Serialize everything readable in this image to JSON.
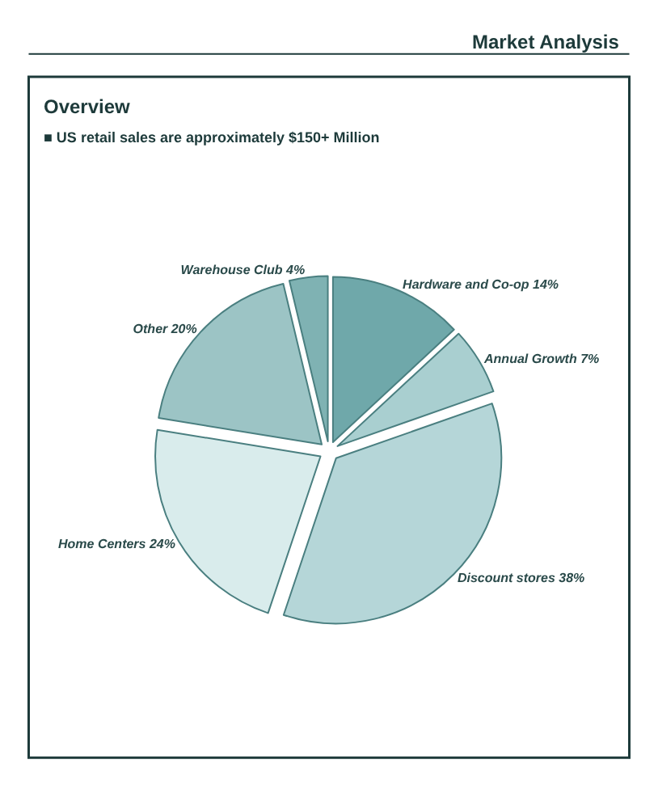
{
  "chart_data": {
    "type": "pie",
    "title": "Market Analysis",
    "subtitle": "Overview",
    "annotations": [
      "■ US retail sales are approximately $150+ Million"
    ],
    "categories": [
      "Hardware and Co-op",
      "Annual Growth",
      "Discount stores",
      "Home Centers",
      "Other",
      "Warehouse Club"
    ],
    "values": [
      14,
      7,
      38,
      24,
      20,
      4
    ],
    "value_labels": [
      "14%",
      "7%",
      "38%",
      "24%",
      "20%",
      "4%"
    ],
    "colors": [
      "#6fa8aa",
      "#a9cfd0",
      "#b5d6d8",
      "#d9ecec",
      "#9cc4c5",
      "#7fb2b3"
    ],
    "legend": false
  }
}
